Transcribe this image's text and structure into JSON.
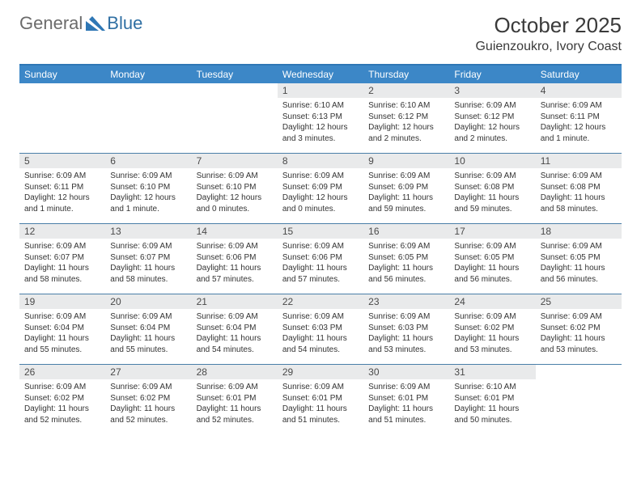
{
  "logo": {
    "general": "General",
    "blue": "Blue"
  },
  "title": "October 2025",
  "location": "Guienzoukro, Ivory Coast",
  "colors": {
    "header_bar": "#3c87c7",
    "divider": "#4a7fa8",
    "daynum_bg": "#e9eaeb",
    "text": "#333333",
    "title_text": "#3a3a3a"
  },
  "weekdays": [
    "Sunday",
    "Monday",
    "Tuesday",
    "Wednesday",
    "Thursday",
    "Friday",
    "Saturday"
  ],
  "weeks": [
    [
      null,
      null,
      null,
      {
        "n": "1",
        "sr": "6:10 AM",
        "ss": "6:13 PM",
        "dl": "12 hours and 3 minutes."
      },
      {
        "n": "2",
        "sr": "6:10 AM",
        "ss": "6:12 PM",
        "dl": "12 hours and 2 minutes."
      },
      {
        "n": "3",
        "sr": "6:09 AM",
        "ss": "6:12 PM",
        "dl": "12 hours and 2 minutes."
      },
      {
        "n": "4",
        "sr": "6:09 AM",
        "ss": "6:11 PM",
        "dl": "12 hours and 1 minute."
      }
    ],
    [
      {
        "n": "5",
        "sr": "6:09 AM",
        "ss": "6:11 PM",
        "dl": "12 hours and 1 minute."
      },
      {
        "n": "6",
        "sr": "6:09 AM",
        "ss": "6:10 PM",
        "dl": "12 hours and 1 minute."
      },
      {
        "n": "7",
        "sr": "6:09 AM",
        "ss": "6:10 PM",
        "dl": "12 hours and 0 minutes."
      },
      {
        "n": "8",
        "sr": "6:09 AM",
        "ss": "6:09 PM",
        "dl": "12 hours and 0 minutes."
      },
      {
        "n": "9",
        "sr": "6:09 AM",
        "ss": "6:09 PM",
        "dl": "11 hours and 59 minutes."
      },
      {
        "n": "10",
        "sr": "6:09 AM",
        "ss": "6:08 PM",
        "dl": "11 hours and 59 minutes."
      },
      {
        "n": "11",
        "sr": "6:09 AM",
        "ss": "6:08 PM",
        "dl": "11 hours and 58 minutes."
      }
    ],
    [
      {
        "n": "12",
        "sr": "6:09 AM",
        "ss": "6:07 PM",
        "dl": "11 hours and 58 minutes."
      },
      {
        "n": "13",
        "sr": "6:09 AM",
        "ss": "6:07 PM",
        "dl": "11 hours and 58 minutes."
      },
      {
        "n": "14",
        "sr": "6:09 AM",
        "ss": "6:06 PM",
        "dl": "11 hours and 57 minutes."
      },
      {
        "n": "15",
        "sr": "6:09 AM",
        "ss": "6:06 PM",
        "dl": "11 hours and 57 minutes."
      },
      {
        "n": "16",
        "sr": "6:09 AM",
        "ss": "6:05 PM",
        "dl": "11 hours and 56 minutes."
      },
      {
        "n": "17",
        "sr": "6:09 AM",
        "ss": "6:05 PM",
        "dl": "11 hours and 56 minutes."
      },
      {
        "n": "18",
        "sr": "6:09 AM",
        "ss": "6:05 PM",
        "dl": "11 hours and 56 minutes."
      }
    ],
    [
      {
        "n": "19",
        "sr": "6:09 AM",
        "ss": "6:04 PM",
        "dl": "11 hours and 55 minutes."
      },
      {
        "n": "20",
        "sr": "6:09 AM",
        "ss": "6:04 PM",
        "dl": "11 hours and 55 minutes."
      },
      {
        "n": "21",
        "sr": "6:09 AM",
        "ss": "6:04 PM",
        "dl": "11 hours and 54 minutes."
      },
      {
        "n": "22",
        "sr": "6:09 AM",
        "ss": "6:03 PM",
        "dl": "11 hours and 54 minutes."
      },
      {
        "n": "23",
        "sr": "6:09 AM",
        "ss": "6:03 PM",
        "dl": "11 hours and 53 minutes."
      },
      {
        "n": "24",
        "sr": "6:09 AM",
        "ss": "6:02 PM",
        "dl": "11 hours and 53 minutes."
      },
      {
        "n": "25",
        "sr": "6:09 AM",
        "ss": "6:02 PM",
        "dl": "11 hours and 53 minutes."
      }
    ],
    [
      {
        "n": "26",
        "sr": "6:09 AM",
        "ss": "6:02 PM",
        "dl": "11 hours and 52 minutes."
      },
      {
        "n": "27",
        "sr": "6:09 AM",
        "ss": "6:02 PM",
        "dl": "11 hours and 52 minutes."
      },
      {
        "n": "28",
        "sr": "6:09 AM",
        "ss": "6:01 PM",
        "dl": "11 hours and 52 minutes."
      },
      {
        "n": "29",
        "sr": "6:09 AM",
        "ss": "6:01 PM",
        "dl": "11 hours and 51 minutes."
      },
      {
        "n": "30",
        "sr": "6:09 AM",
        "ss": "6:01 PM",
        "dl": "11 hours and 51 minutes."
      },
      {
        "n": "31",
        "sr": "6:10 AM",
        "ss": "6:01 PM",
        "dl": "11 hours and 50 minutes."
      },
      null
    ]
  ],
  "labels": {
    "sunrise": "Sunrise: ",
    "sunset": "Sunset: ",
    "daylight": "Daylight: "
  }
}
